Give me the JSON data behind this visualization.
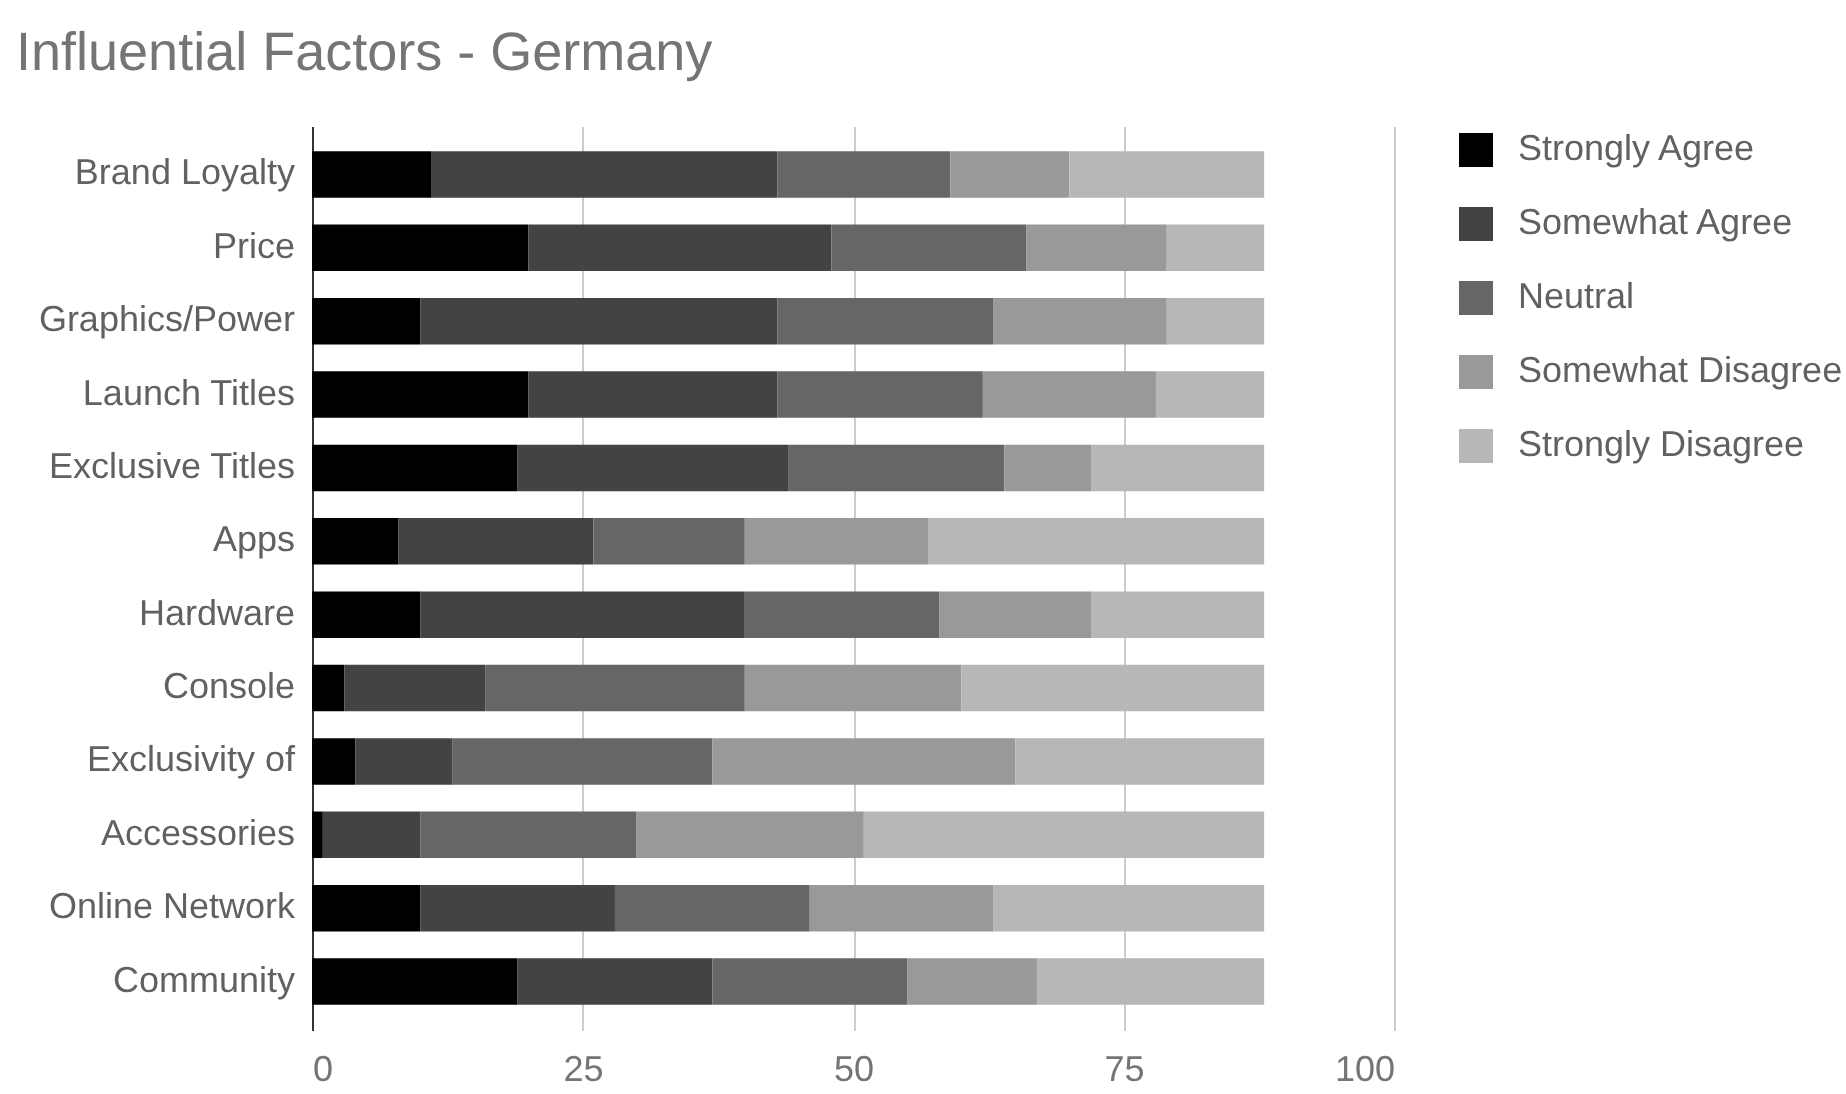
{
  "chart_data": {
    "type": "bar",
    "orientation": "horizontal",
    "stacked": true,
    "title": "Influential Factors - Germany",
    "categories": [
      "Brand Loyalty",
      "Price",
      "Graphics/Power",
      "Launch Titles",
      "Exclusive Titles",
      "Apps",
      "Hardware",
      "Console",
      "Exclusivity of",
      "Accessories",
      "Online Network",
      "Community"
    ],
    "series": [
      {
        "name": "Strongly Agree",
        "color": "#000000",
        "values": [
          11,
          20,
          10,
          20,
          19,
          8,
          10,
          3,
          4,
          1,
          10,
          19
        ]
      },
      {
        "name": "Somewhat Agree",
        "color": "#434343",
        "values": [
          32,
          28,
          33,
          23,
          25,
          18,
          30,
          13,
          9,
          9,
          18,
          18
        ]
      },
      {
        "name": "Neutral",
        "color": "#666666",
        "values": [
          16,
          18,
          20,
          19,
          20,
          14,
          18,
          24,
          24,
          20,
          18,
          18
        ]
      },
      {
        "name": "Somewhat Disagree",
        "color": "#999999",
        "values": [
          11,
          13,
          16,
          16,
          8,
          17,
          14,
          20,
          28,
          21,
          17,
          12
        ]
      },
      {
        "name": "Strongly Disagree",
        "color": "#b7b7b7",
        "values": [
          18,
          9,
          9,
          10,
          16,
          31,
          16,
          28,
          23,
          37,
          25,
          21
        ]
      }
    ],
    "xlim": [
      0,
      100
    ],
    "xticks": [
      0,
      25,
      50,
      75,
      100
    ],
    "grid": "x",
    "legend": "right"
  }
}
